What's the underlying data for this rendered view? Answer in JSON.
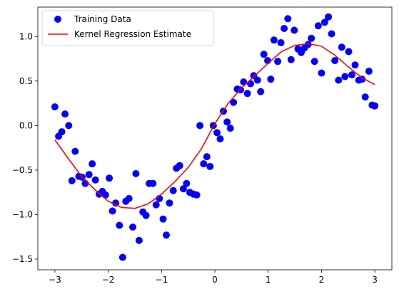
{
  "chart_data": {
    "type": "scatter",
    "title": "",
    "xlabel": "",
    "ylabel": "",
    "xlim": [
      -3.32,
      3.32
    ],
    "ylim": [
      -1.62,
      1.33
    ],
    "grid": false,
    "legend_placement": "top-left",
    "x_ticks": [
      -3,
      -2,
      -1,
      0,
      1,
      2,
      3
    ],
    "x_tick_labels": [
      "−3",
      "−2",
      "−1",
      "0",
      "1",
      "2",
      "3"
    ],
    "y_ticks": [
      -1.5,
      -1.0,
      -0.5,
      0.0,
      0.5,
      1.0
    ],
    "y_tick_labels": [
      "−1.5",
      "−1.0",
      "−0.5",
      "0.0",
      "0.5",
      "1.0"
    ],
    "series": [
      {
        "name": "Training Data",
        "kind": "scatter",
        "color": "#0000ff",
        "x": [
          -3.0,
          -2.93,
          -2.87,
          -2.81,
          -2.74,
          -2.68,
          -2.62,
          -2.55,
          -2.49,
          -2.43,
          -2.36,
          -2.3,
          -2.24,
          -2.17,
          -2.11,
          -2.05,
          -1.98,
          -1.92,
          -1.86,
          -1.79,
          -1.73,
          -1.67,
          -1.61,
          -1.54,
          -1.48,
          -1.42,
          -1.35,
          -1.29,
          -1.23,
          -1.16,
          -1.1,
          -1.04,
          -0.97,
          -0.91,
          -0.85,
          -0.78,
          -0.72,
          -0.66,
          -0.59,
          -0.53,
          -0.47,
          -0.4,
          -0.34,
          -0.28,
          -0.21,
          -0.15,
          -0.09,
          -0.03,
          0.04,
          0.1,
          0.16,
          0.23,
          0.29,
          0.35,
          0.42,
          0.48,
          0.54,
          0.61,
          0.67,
          0.73,
          0.8,
          0.86,
          0.92,
          0.99,
          1.05,
          1.11,
          1.18,
          1.24,
          1.3,
          1.37,
          1.43,
          1.49,
          1.56,
          1.62,
          1.68,
          1.75,
          1.81,
          1.87,
          1.94,
          2.0,
          2.06,
          2.13,
          2.19,
          2.25,
          2.32,
          2.38,
          2.44,
          2.51,
          2.57,
          2.63,
          2.7,
          2.76,
          2.82,
          2.89,
          2.95,
          3.0
        ],
        "y": [
          0.21,
          -0.12,
          -0.07,
          0.13,
          0.0,
          -0.62,
          -0.29,
          -0.57,
          -0.58,
          -0.65,
          -0.55,
          -0.43,
          -0.61,
          -0.77,
          -0.74,
          -0.78,
          -0.59,
          -0.96,
          -0.87,
          -1.12,
          -1.48,
          -0.85,
          -0.82,
          -1.14,
          -0.54,
          -1.29,
          -0.97,
          -1.01,
          -0.65,
          -0.65,
          -0.89,
          -0.82,
          -1.05,
          -1.23,
          -0.87,
          -0.73,
          -0.48,
          -0.45,
          -0.71,
          -0.65,
          -0.75,
          -0.77,
          -0.78,
          0.0,
          -0.43,
          -0.35,
          -0.46,
          0.0,
          -0.08,
          -0.15,
          0.16,
          0.04,
          -0.03,
          0.26,
          0.41,
          0.4,
          0.49,
          0.36,
          0.47,
          0.56,
          0.51,
          0.38,
          0.8,
          0.73,
          0.52,
          0.96,
          0.72,
          0.93,
          1.09,
          1.2,
          0.74,
          1.07,
          0.86,
          0.82,
          0.87,
          0.91,
          0.98,
          0.72,
          1.12,
          0.59,
          1.16,
          1.22,
          1.03,
          0.73,
          0.51,
          0.88,
          0.55,
          0.83,
          0.57,
          0.68,
          0.51,
          0.52,
          0.32,
          0.61,
          0.23,
          0.22
        ]
      },
      {
        "name": "Kernel Regression Estimate",
        "kind": "line",
        "color": "#ff0000",
        "x": [
          -3.0,
          -2.75,
          -2.5,
          -2.25,
          -2.0,
          -1.75,
          -1.5,
          -1.25,
          -1.0,
          -0.75,
          -0.5,
          -0.25,
          0.0,
          0.25,
          0.5,
          0.75,
          1.0,
          1.25,
          1.5,
          1.75,
          2.0,
          2.25,
          2.5,
          2.75,
          3.0
        ],
        "y": [
          -0.16,
          -0.37,
          -0.57,
          -0.72,
          -0.85,
          -0.92,
          -0.93,
          -0.88,
          -0.77,
          -0.63,
          -0.47,
          -0.26,
          0.02,
          0.25,
          0.42,
          0.56,
          0.7,
          0.83,
          0.9,
          0.92,
          0.89,
          0.79,
          0.66,
          0.54,
          0.46
        ]
      }
    ]
  }
}
